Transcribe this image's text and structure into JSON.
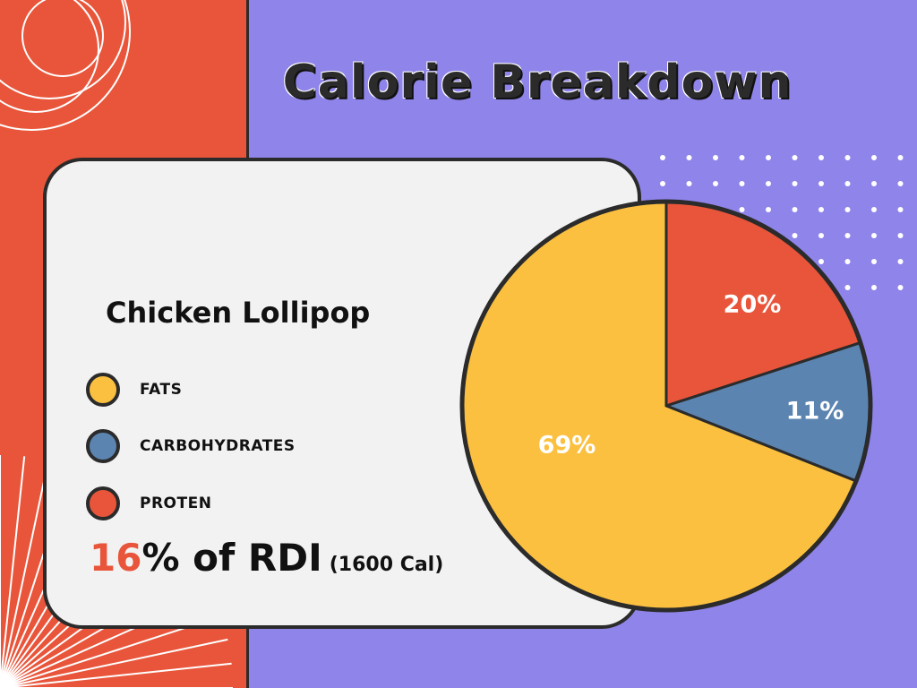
{
  "title": "Calorie Breakdown",
  "item_name": "Chicken Lollipop",
  "legend": [
    {
      "label": "FATS",
      "color": "#fbc040"
    },
    {
      "label": "CARBOHYDRATES",
      "color": "#5b84b1"
    },
    {
      "label": "PROTEN",
      "color": "#e8553a"
    }
  ],
  "rdi": {
    "percent": "16",
    "text": "% of RDI",
    "calories": "(1600 Cal)"
  },
  "colors": {
    "background": "#8f84ea",
    "accent": "#e8553a",
    "card": "#f2f2f2",
    "outline": "#2b2b2b"
  },
  "chart_data": {
    "type": "pie",
    "categories": [
      "PROTEN",
      "CARBOHYDRATES",
      "FATS"
    ],
    "values": [
      20,
      11,
      69
    ],
    "labels": [
      "20%",
      "11%",
      "69%"
    ],
    "colors": [
      "#e8553a",
      "#5b84b1",
      "#fbc040"
    ]
  }
}
